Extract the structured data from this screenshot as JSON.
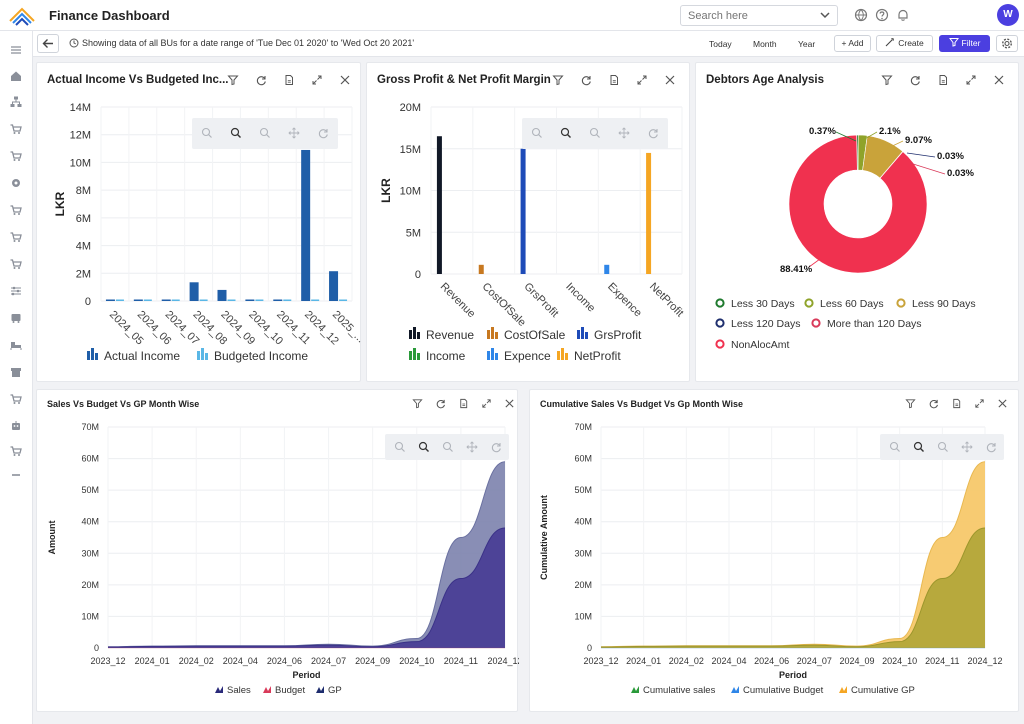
{
  "app": {
    "title": "Finance Dashboard",
    "search_placeholder": "Search here",
    "avatar_initial": "W",
    "accent": "#4b3fe0"
  },
  "subbar": {
    "info": "Showing data of all BUs for a date range of 'Tue Dec 01 2020' to 'Wed Oct 20 2021'",
    "today": "Today",
    "month": "Month",
    "year": "Year",
    "add": "+ Add",
    "create": "Create",
    "filter": "Filter"
  },
  "sidebar_icons": [
    "menu-icon",
    "home-icon",
    "sitemap-icon",
    "cart-icon",
    "cart-icon",
    "gear-icon",
    "cart-icon",
    "cart-icon",
    "cart-icon",
    "sliders-icon",
    "bus-icon",
    "bed-icon",
    "store-icon",
    "cart-icon",
    "robot-icon",
    "cart-icon",
    "minus-icon"
  ],
  "cards": {
    "actual_income": {
      "title": "Actual Income Vs Budgeted Inc...",
      "ylabel": "LKR",
      "yticks": [
        "0",
        "2M",
        "4M",
        "6M",
        "8M",
        "10M",
        "12M",
        "14M"
      ],
      "legend": [
        "Actual Income",
        "Budgeted Income"
      ]
    },
    "gross_profit": {
      "title": "Gross Profit & Net Profit Margin",
      "ylabel": "LKR",
      "yticks": [
        "0",
        "5M",
        "10M",
        "15M",
        "20M"
      ],
      "legend": [
        "Revenue",
        "CostOfSale",
        "GrsProfit",
        "Income",
        "Expence",
        "NetProfit"
      ]
    },
    "debtors": {
      "title": "Debtors Age Analysis",
      "slice_labels": [
        "0.37%",
        "2.1%",
        "9.07%",
        "0.03%",
        "0.03%",
        "88.41%"
      ],
      "legend": [
        "Less 30 Days",
        "Less 60 Days",
        "Less 90 Days",
        "Less 120 Days",
        "More than 120 Days",
        "NonAlocAmt"
      ]
    },
    "sales_budget": {
      "title": "Sales Vs Budget Vs GP Month Wise",
      "ylabel": "Amount",
      "xlabel": "Period",
      "yticks": [
        "0",
        "10M",
        "20M",
        "30M",
        "40M",
        "50M",
        "60M",
        "70M"
      ],
      "legend": [
        "Sales",
        "Budget",
        "GP"
      ]
    },
    "cumulative": {
      "title": "Cumulative Sales Vs Budget Vs Gp Month Wise",
      "ylabel": "Cumulative Amount",
      "xlabel": "Period",
      "yticks": [
        "0",
        "10M",
        "20M",
        "30M",
        "40M",
        "50M",
        "60M",
        "70M"
      ],
      "legend": [
        "Cumulative sales",
        "Cumulative Budget",
        "Cumulative GP"
      ]
    }
  },
  "chart_data": [
    {
      "type": "bar",
      "categories": [
        "2024_05",
        "2024_06",
        "2024_07",
        "2024_08",
        "2024_09",
        "2024_10",
        "2024_11",
        "2024_12",
        "2025_..."
      ],
      "series": [
        {
          "name": "Actual Income",
          "color": "#1f5ea8",
          "values": [
            0.05,
            0.05,
            0.05,
            1.35,
            0.8,
            0.05,
            0.05,
            10.9,
            2.15
          ]
        },
        {
          "name": "Budgeted Income",
          "color": "#5ab7e6",
          "values": [
            0.05,
            0.05,
            0.05,
            0.05,
            0.05,
            0.05,
            0.05,
            0.05,
            0.05
          ]
        }
      ],
      "ylabel": "LKR",
      "ylim": [
        0,
        14000000
      ]
    },
    {
      "type": "bar",
      "categories": [
        "Revenue",
        "CostOfSale",
        "GrsProfit",
        "Income",
        "Expence",
        "NetProfit"
      ],
      "series": [
        {
          "name": "Revenue",
          "color": "#111827",
          "values": [
            16.5,
            0,
            0,
            0,
            0,
            0
          ]
        },
        {
          "name": "CostOfSale",
          "color": "#c77820",
          "values": [
            0,
            1.1,
            0,
            0,
            0,
            0
          ]
        },
        {
          "name": "GrsProfit",
          "color": "#1e4bb8",
          "values": [
            0,
            0,
            15.0,
            0,
            0,
            0
          ]
        },
        {
          "name": "Income",
          "color": "#2a9a3a",
          "values": [
            0,
            0,
            0,
            0,
            0,
            0
          ]
        },
        {
          "name": "Expence",
          "color": "#2f86e8",
          "values": [
            0,
            0,
            0,
            0,
            1.1,
            0
          ]
        },
        {
          "name": "NetProfit",
          "color": "#f5a623",
          "values": [
            0,
            0,
            0,
            0,
            0,
            14.5
          ]
        }
      ],
      "ylabel": "LKR",
      "ylim": [
        0,
        20000000
      ]
    },
    {
      "type": "pie",
      "labels": [
        "Less 30 Days",
        "Less 60 Days",
        "Less 90 Days",
        "Less 120 Days",
        "More than 120 Days",
        "NonAlocAmt"
      ],
      "values": [
        0.37,
        2.1,
        9.07,
        0.03,
        0.03,
        88.41
      ],
      "colors": [
        "#1f7a2e",
        "#8fa32a",
        "#c9a33a",
        "#1f2f6e",
        "#d93a5a",
        "#f0314f"
      ]
    },
    {
      "type": "area",
      "categories": [
        "2023_12",
        "2024_01",
        "2024_02",
        "2024_04",
        "2024_06",
        "2024_07",
        "2024_09",
        "2024_10",
        "2024_11",
        "2024_12"
      ],
      "series": [
        {
          "name": "Sales",
          "color": "#8a8fb8",
          "values": [
            0.4,
            0.6,
            0.7,
            0.7,
            0.7,
            1.2,
            0.6,
            3,
            35,
            59
          ]
        },
        {
          "name": "Budget",
          "color": "#d93a5a",
          "values": [
            0,
            0,
            0,
            0,
            0,
            0,
            0,
            0,
            0,
            0
          ]
        },
        {
          "name": "GP",
          "color": "#4a3f96",
          "values": [
            0.3,
            0.5,
            0.6,
            0.6,
            0.6,
            0.9,
            0.4,
            2,
            22,
            38
          ]
        }
      ],
      "xlabel": "Period",
      "ylabel": "Amount",
      "ylim": [
        0,
        70000000
      ]
    },
    {
      "type": "area",
      "categories": [
        "2023_12",
        "2024_01",
        "2024_02",
        "2024_04",
        "2024_06",
        "2024_07",
        "2024_09",
        "2024_10",
        "2024_11",
        "2024_12"
      ],
      "series": [
        {
          "name": "Cumulative sales",
          "color": "#2a9a3a",
          "values": [
            0.4,
            0.6,
            0.7,
            0.7,
            0.7,
            1.2,
            0.6,
            3,
            35,
            59
          ]
        },
        {
          "name": "Cumulative Budget",
          "color": "#2f86e8",
          "values": [
            0,
            0,
            0,
            0,
            0,
            0,
            0,
            0,
            0,
            0
          ]
        },
        {
          "name": "Cumulative GP",
          "color": "#f5c35a",
          "values": [
            0.3,
            0.5,
            0.6,
            0.6,
            0.6,
            0.9,
            0.4,
            2,
            22,
            38
          ]
        }
      ],
      "xlabel": "Period",
      "ylabel": "Cumulative Amount",
      "ylim": [
        0,
        70000000
      ]
    }
  ]
}
